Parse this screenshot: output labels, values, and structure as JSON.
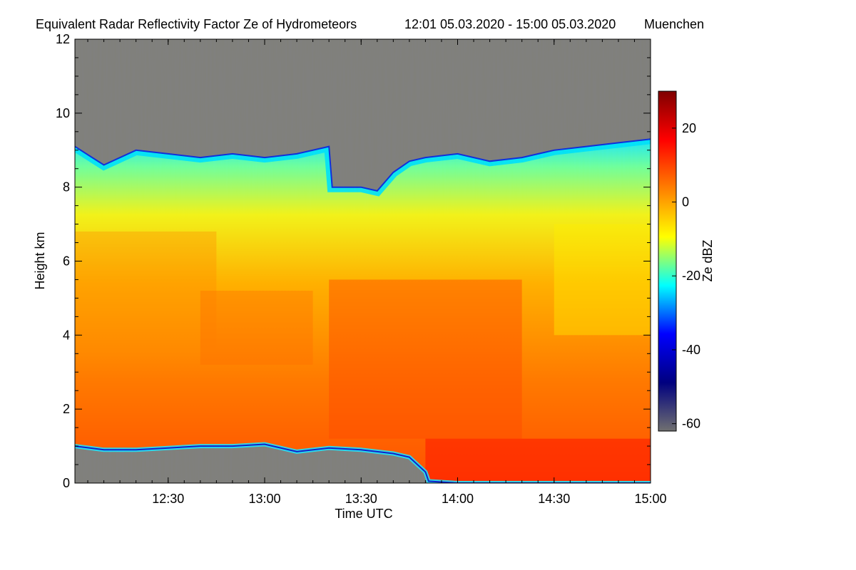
{
  "chart_data": {
    "type": "heatmap",
    "title": "Equivalent Radar Reflectivity Factor Ze of Hydrometeors",
    "period": "12:01 05.03.2020 - 15:00 05.03.2020",
    "location": "Muenchen",
    "xlabel": "Time UTC",
    "ylabel": "Height km",
    "xlim": [
      "12:01",
      "15:00"
    ],
    "ylim": [
      0,
      12
    ],
    "x_ticks": [
      "12:30",
      "13:00",
      "13:30",
      "14:00",
      "14:30",
      "15:00"
    ],
    "y_ticks": [
      "0",
      "2",
      "4",
      "6",
      "8",
      "10",
      "12"
    ],
    "colorbar": {
      "label": "Ze dBZ",
      "range": [
        -62,
        30
      ],
      "ticks": [
        "20",
        "0",
        "-20",
        "-40",
        "-60"
      ],
      "colors": [
        "#707070",
        "#00007f",
        "#0000ff",
        "#00ffff",
        "#ffff00",
        "#ff7f00",
        "#ff0000",
        "#7f0000"
      ]
    },
    "no_signal_color": "#808080",
    "series": [
      {
        "name": "echo top height (km)",
        "x": [
          "12:01",
          "12:10",
          "12:20",
          "12:30",
          "12:40",
          "12:50",
          "13:00",
          "13:10",
          "13:20",
          "13:21",
          "13:30",
          "13:35",
          "13:40",
          "13:45",
          "13:50",
          "14:00",
          "14:10",
          "14:20",
          "14:30",
          "14:40",
          "14:50",
          "15:00"
        ],
        "values": [
          9.1,
          8.6,
          9.0,
          8.9,
          8.8,
          8.9,
          8.8,
          8.9,
          9.1,
          8.0,
          8.0,
          7.9,
          8.4,
          8.7,
          8.8,
          8.9,
          8.7,
          8.8,
          9.0,
          9.1,
          9.2,
          9.3
        ]
      },
      {
        "name": "echo base height (km)",
        "x": [
          "12:01",
          "12:10",
          "12:20",
          "12:30",
          "12:40",
          "12:50",
          "13:00",
          "13:10",
          "13:20",
          "13:30",
          "13:40",
          "13:45",
          "13:50",
          "13:51",
          "14:00",
          "15:00"
        ],
        "values": [
          1.0,
          0.9,
          0.9,
          0.95,
          1.0,
          1.0,
          1.05,
          0.85,
          0.95,
          0.9,
          0.8,
          0.7,
          0.3,
          0.05,
          0.0,
          0.0
        ]
      }
    ]
  }
}
